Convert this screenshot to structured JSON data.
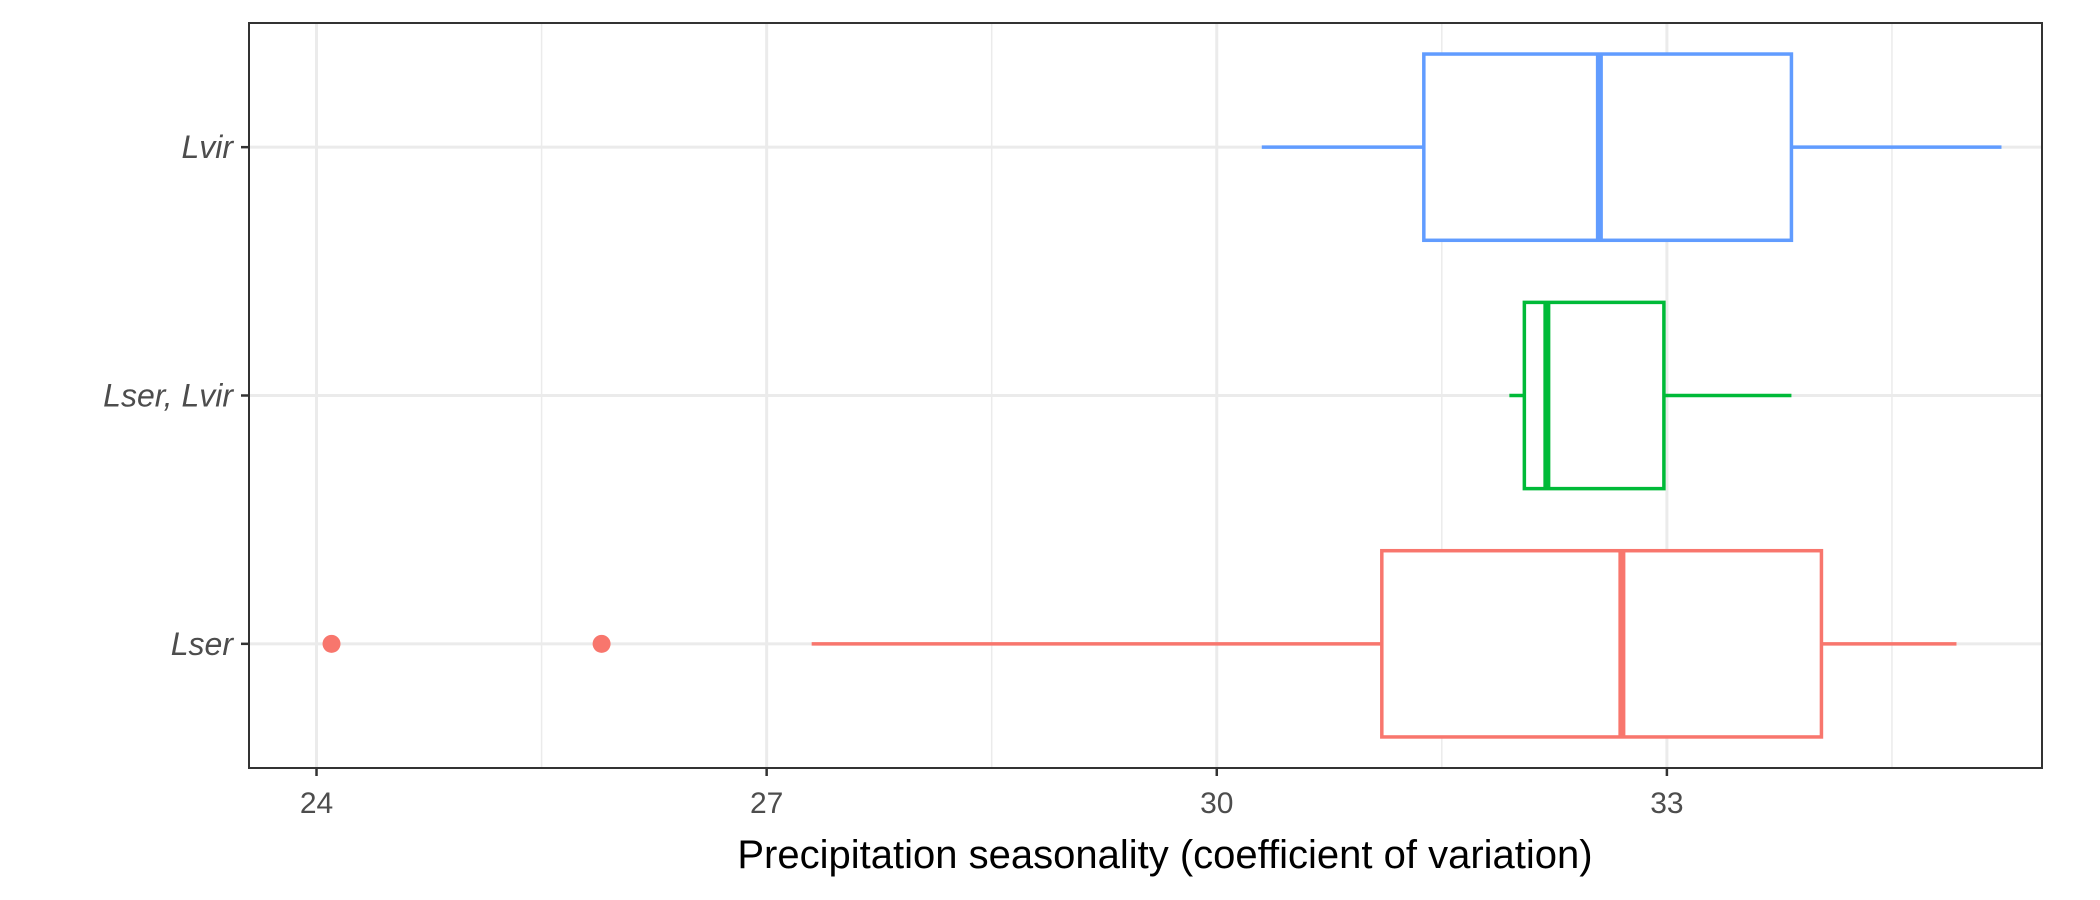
{
  "chart_data": {
    "type": "boxplot",
    "orientation": "horizontal",
    "title": "",
    "xlabel": "Precipitation seasonality (coefficient of variation)",
    "ylabel": "",
    "xlim": [
      23.55,
      35.5
    ],
    "x_ticks": [
      24,
      27,
      30,
      33
    ],
    "x_tick_labels": [
      "24",
      "27",
      "30",
      "33"
    ],
    "grid": true,
    "legend": "none",
    "categories": [
      "Lser",
      "Lser, Lvir",
      "Lvir"
    ],
    "series": [
      {
        "category": "Lser",
        "color": "#F8766D",
        "whisker_low": 27.3,
        "q1": 31.1,
        "median": 32.7,
        "q3": 34.03,
        "whisker_high": 34.93,
        "outliers": [
          24.1,
          25.9
        ]
      },
      {
        "category": "Lser, Lvir",
        "color": "#00BA38",
        "whisker_low": 31.95,
        "q1": 32.05,
        "median": 32.2,
        "q3": 32.98,
        "whisker_high": 33.83,
        "outliers": []
      },
      {
        "category": "Lvir",
        "color": "#619CFF",
        "whisker_low": 30.3,
        "q1": 31.38,
        "median": 32.55,
        "q3": 33.83,
        "whisker_high": 35.23,
        "outliers": []
      }
    ]
  }
}
